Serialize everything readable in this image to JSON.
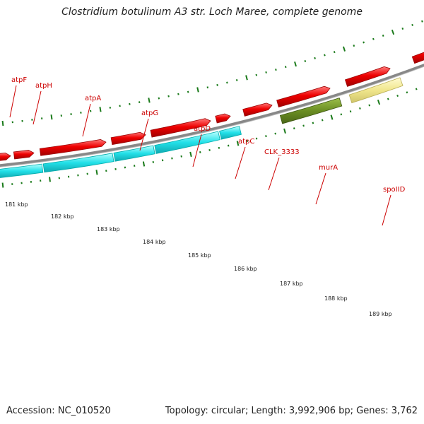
{
  "header": {
    "title": "Clostridium botulinum A3 str. Loch Maree, complete genome"
  },
  "map": {
    "gene_labels": [
      "atpF",
      "atpH",
      "atpA",
      "atpG",
      "atpD",
      "atpC",
      "CLK_3333",
      "murA",
      "spoIID"
    ],
    "kbp_labels": [
      "181 kbp",
      "182 kbp",
      "183 kbp",
      "184 kbp",
      "185 kbp",
      "186 kbp",
      "187 kbp",
      "188 kbp",
      "189 kbp"
    ],
    "colors": {
      "cds_forward_cyan": "#22e0e8",
      "cds_reverse_red": "#ee0000",
      "cds_olive": "#6b8e23",
      "cds_khaki": "#f0e68c",
      "backbone": "#888888",
      "tick": "#1a7a1a",
      "label": "#cc0000"
    }
  },
  "footer": {
    "accession": "Accession: NC_010520",
    "summary": "Topology: circular; Length: 3,992,906 bp; Genes: 3,762"
  }
}
